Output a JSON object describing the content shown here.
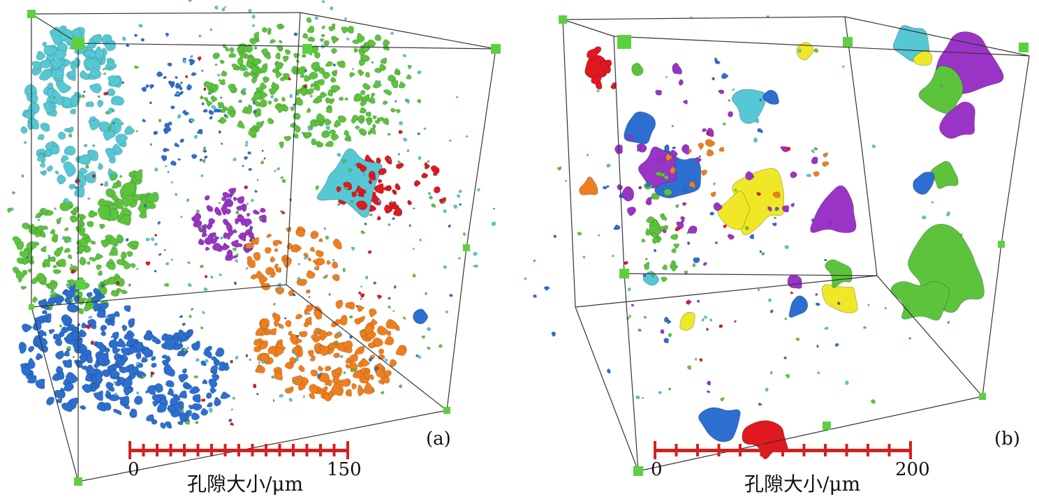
{
  "colors": {
    "cyan": "#55c8d4",
    "green": "#5cc43c",
    "blue": "#2c6fd0",
    "red": "#e0181f",
    "orange": "#ef7f1e",
    "purple": "#9a34c6",
    "yellow": "#f0e826",
    "edge": "#333333",
    "corner": "#5dd040",
    "scalebar": "#d42020"
  },
  "panels": [
    {
      "label": "(a)",
      "scale_start": "0",
      "scale_end": "150",
      "scale_unit": "孔隙大小/μm"
    },
    {
      "label": "(b)",
      "scale_start": "0",
      "scale_end": "200",
      "scale_unit": "孔隙大小/μm"
    }
  ]
}
